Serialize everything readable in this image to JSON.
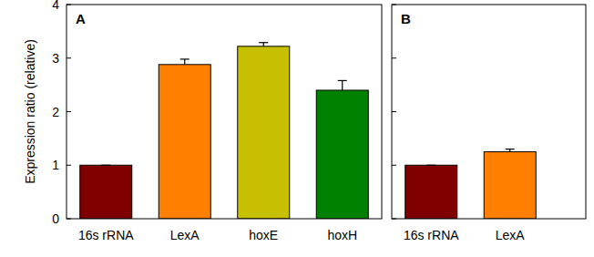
{
  "chart_data": [
    {
      "type": "bar",
      "title": "A",
      "y_label": "Expression ratio (relative)",
      "categories": [
        "16s rRNA",
        "LexA",
        "hoxE",
        "hoxH"
      ],
      "values": [
        1,
        2.88,
        3.22,
        2.4
      ],
      "errors": [
        0,
        0.1,
        0.07,
        0.18
      ],
      "colors": [
        "#800000",
        "#ff8000",
        "#c6c000",
        "#008000"
      ],
      "ylim": [
        0,
        4
      ],
      "yticks": [
        0,
        1,
        2,
        3,
        4
      ],
      "grid": false
    },
    {
      "type": "bar",
      "title": "B",
      "categories": [
        "16s rRNA",
        "LexA"
      ],
      "values": [
        1,
        1.25
      ],
      "errors": [
        0,
        0.05
      ],
      "colors": [
        "#800000",
        "#ff8000"
      ],
      "ylim": [
        0,
        4
      ],
      "yticks": [
        0,
        1,
        2,
        3,
        4
      ],
      "grid": false,
      "tick_labels": "x"
    }
  ]
}
